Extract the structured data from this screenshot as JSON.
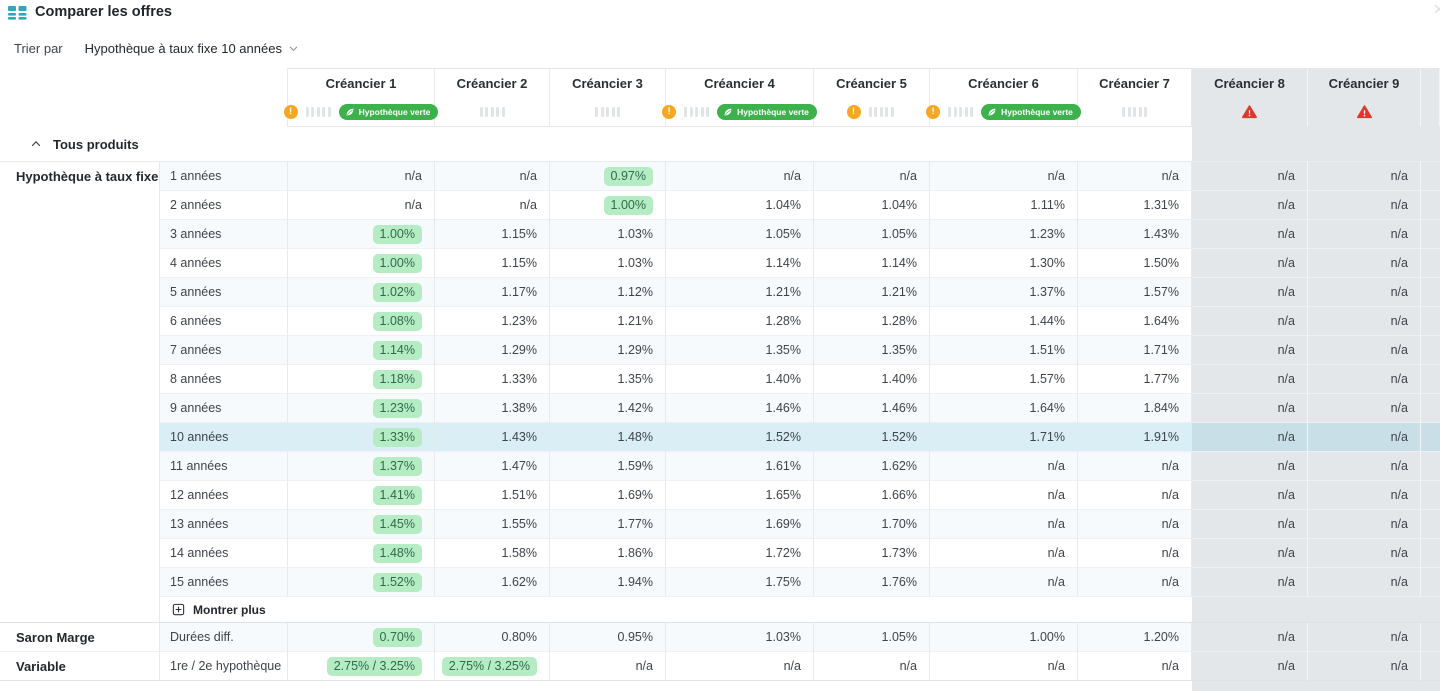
{
  "title_bar": {
    "title": "Comparer les offres"
  },
  "sort_bar": {
    "label": "Trier par",
    "value": "Hypothèque à taux fixe 10 années"
  },
  "group": {
    "toggle_label": "Tous produits"
  },
  "badges": {
    "green_badge_label": "Hypothèque verte"
  },
  "show_more": {
    "label": "Montrer plus"
  },
  "creditors": [
    {
      "name": "Créancier 1",
      "warning": true,
      "meter": true,
      "green_badge": true,
      "alert": false,
      "disabled": false
    },
    {
      "name": "Créancier 2",
      "warning": false,
      "meter": true,
      "green_badge": false,
      "alert": false,
      "disabled": false
    },
    {
      "name": "Créancier 3",
      "warning": false,
      "meter": true,
      "green_badge": false,
      "alert": false,
      "disabled": false
    },
    {
      "name": "Créancier 4",
      "warning": true,
      "meter": true,
      "green_badge": true,
      "alert": false,
      "disabled": false
    },
    {
      "name": "Créancier 5",
      "warning": true,
      "meter": true,
      "green_badge": false,
      "alert": false,
      "disabled": false
    },
    {
      "name": "Créancier 6",
      "warning": true,
      "meter": true,
      "green_badge": true,
      "alert": false,
      "disabled": false
    },
    {
      "name": "Créancier 7",
      "warning": false,
      "meter": true,
      "green_badge": false,
      "alert": false,
      "disabled": false
    },
    {
      "name": "Créancier 8",
      "warning": false,
      "meter": false,
      "green_badge": false,
      "alert": true,
      "disabled": true
    },
    {
      "name": "Créancier 9",
      "warning": false,
      "meter": false,
      "green_badge": false,
      "alert": true,
      "disabled": true
    }
  ],
  "sections": [
    {
      "label": "Hypothèque à taux fixe",
      "rows": [
        {
          "term": "1 années",
          "values": [
            "n/a",
            "n/a",
            "0.97%",
            "n/a",
            "n/a",
            "n/a",
            "n/a",
            "n/a",
            "n/a"
          ],
          "green": [
            2
          ],
          "highlight": false
        },
        {
          "term": "2 années",
          "values": [
            "n/a",
            "n/a",
            "1.00%",
            "1.04%",
            "1.04%",
            "1.11%",
            "1.31%",
            "n/a",
            "n/a"
          ],
          "green": [
            2
          ],
          "highlight": false
        },
        {
          "term": "3 années",
          "values": [
            "1.00%",
            "1.15%",
            "1.03%",
            "1.05%",
            "1.05%",
            "1.23%",
            "1.43%",
            "n/a",
            "n/a"
          ],
          "green": [
            0
          ],
          "highlight": false
        },
        {
          "term": "4 années",
          "values": [
            "1.00%",
            "1.15%",
            "1.03%",
            "1.14%",
            "1.14%",
            "1.30%",
            "1.50%",
            "n/a",
            "n/a"
          ],
          "green": [
            0
          ],
          "highlight": false
        },
        {
          "term": "5 années",
          "values": [
            "1.02%",
            "1.17%",
            "1.12%",
            "1.21%",
            "1.21%",
            "1.37%",
            "1.57%",
            "n/a",
            "n/a"
          ],
          "green": [
            0
          ],
          "highlight": false
        },
        {
          "term": "6 années",
          "values": [
            "1.08%",
            "1.23%",
            "1.21%",
            "1.28%",
            "1.28%",
            "1.44%",
            "1.64%",
            "n/a",
            "n/a"
          ],
          "green": [
            0
          ],
          "highlight": false
        },
        {
          "term": "7 années",
          "values": [
            "1.14%",
            "1.29%",
            "1.29%",
            "1.35%",
            "1.35%",
            "1.51%",
            "1.71%",
            "n/a",
            "n/a"
          ],
          "green": [
            0
          ],
          "highlight": false
        },
        {
          "term": "8 années",
          "values": [
            "1.18%",
            "1.33%",
            "1.35%",
            "1.40%",
            "1.40%",
            "1.57%",
            "1.77%",
            "n/a",
            "n/a"
          ],
          "green": [
            0
          ],
          "highlight": false
        },
        {
          "term": "9 années",
          "values": [
            "1.23%",
            "1.38%",
            "1.42%",
            "1.46%",
            "1.46%",
            "1.64%",
            "1.84%",
            "n/a",
            "n/a"
          ],
          "green": [
            0
          ],
          "highlight": false
        },
        {
          "term": "10 années",
          "values": [
            "1.33%",
            "1.43%",
            "1.48%",
            "1.52%",
            "1.52%",
            "1.71%",
            "1.91%",
            "n/a",
            "n/a"
          ],
          "green": [
            0
          ],
          "highlight": true
        },
        {
          "term": "11 années",
          "values": [
            "1.37%",
            "1.47%",
            "1.59%",
            "1.61%",
            "1.62%",
            "n/a",
            "n/a",
            "n/a",
            "n/a"
          ],
          "green": [
            0
          ],
          "highlight": false
        },
        {
          "term": "12 années",
          "values": [
            "1.41%",
            "1.51%",
            "1.69%",
            "1.65%",
            "1.66%",
            "n/a",
            "n/a",
            "n/a",
            "n/a"
          ],
          "green": [
            0
          ],
          "highlight": false
        },
        {
          "term": "13 années",
          "values": [
            "1.45%",
            "1.55%",
            "1.77%",
            "1.69%",
            "1.70%",
            "n/a",
            "n/a",
            "n/a",
            "n/a"
          ],
          "green": [
            0
          ],
          "highlight": false
        },
        {
          "term": "14 années",
          "values": [
            "1.48%",
            "1.58%",
            "1.86%",
            "1.72%",
            "1.73%",
            "n/a",
            "n/a",
            "n/a",
            "n/a"
          ],
          "green": [
            0
          ],
          "highlight": false
        },
        {
          "term": "15 années",
          "values": [
            "1.52%",
            "1.62%",
            "1.94%",
            "1.75%",
            "1.76%",
            "n/a",
            "n/a",
            "n/a",
            "n/a"
          ],
          "green": [
            0
          ],
          "highlight": false
        }
      ]
    }
  ],
  "extra_rows": [
    {
      "label": "Saron Marge",
      "term": "Durées diff.",
      "values": [
        "0.70%",
        "0.80%",
        "0.95%",
        "1.03%",
        "1.05%",
        "1.00%",
        "1.20%",
        "n/a",
        "n/a"
      ],
      "green": [
        0
      ]
    },
    {
      "label": "Variable",
      "term": "1re / 2e hypothèque",
      "values": [
        "2.75% / 3.25%",
        "2.75% / 3.25%",
        "n/a",
        "n/a",
        "n/a",
        "n/a",
        "n/a",
        "n/a",
        "n/a"
      ],
      "green": [
        0,
        1
      ]
    }
  ],
  "colors": {
    "accent_teal": "#2ba9bd",
    "green_badge": "#3db14b",
    "best_rate_bg": "#b5ecc4",
    "best_rate_text": "#2f6b4a",
    "warning_orange": "#f6a723",
    "alert_red": "#dc392e",
    "highlight_row": "#d9eef5",
    "disabled_column": "#e4e7e9",
    "tint_row": "#f6fafd"
  }
}
